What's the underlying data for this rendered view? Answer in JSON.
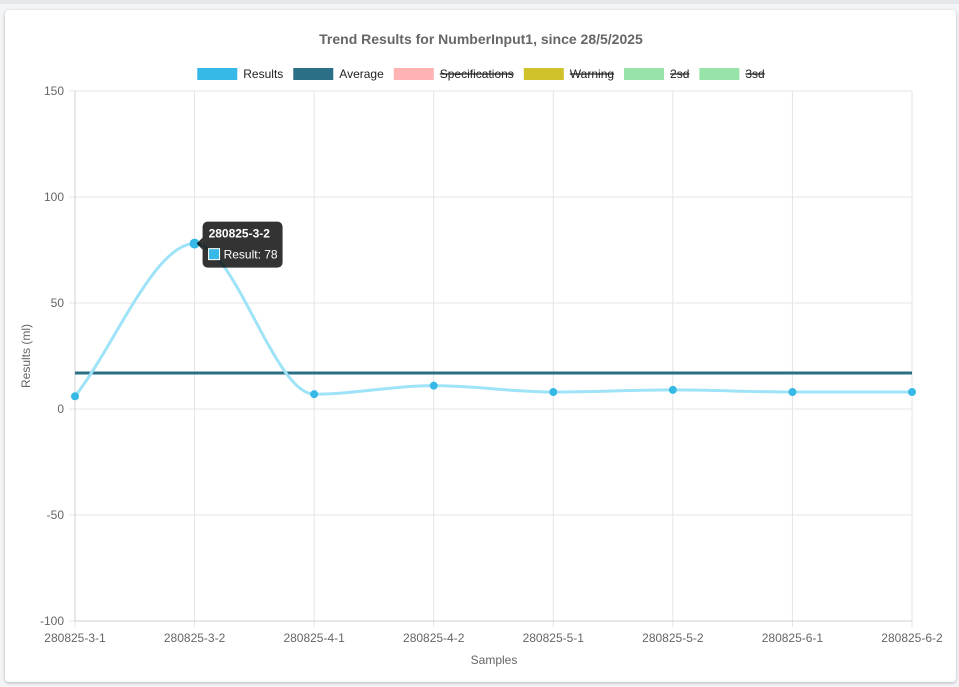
{
  "chart_data": {
    "type": "line",
    "title": "Trend Results for NumberInput1, since 28/5/2025",
    "xlabel": "Samples",
    "ylabel": "Results (ml)",
    "ylim": [
      -100,
      150
    ],
    "yticks": [
      150,
      100,
      50,
      0,
      -50,
      -100
    ],
    "categories": [
      "280825-3-1",
      "280825-3-2",
      "280825-4-1",
      "280825-4-2",
      "280825-5-1",
      "280825-5-2",
      "280825-6-1",
      "280825-6-2"
    ],
    "grid": true,
    "legend_position": "top",
    "legend": [
      {
        "label": "Results",
        "color": "#36b9e6",
        "hidden": false
      },
      {
        "label": "Average",
        "color": "#2a6f86",
        "hidden": false
      },
      {
        "label": "Specifications",
        "color": "#ffb3b3",
        "hidden": true
      },
      {
        "label": "Warning",
        "color": "#cfc22a",
        "hidden": true
      },
      {
        "label": "2sd",
        "color": "#98e4a8",
        "hidden": true
      },
      {
        "label": "3sd",
        "color": "#98e4a8",
        "hidden": true
      }
    ],
    "series": [
      {
        "name": "Results",
        "values": [
          6,
          78,
          7,
          11,
          8,
          9,
          8,
          8
        ],
        "line_color": "#9ee3f7",
        "point_color": "#36b9e6"
      },
      {
        "name": "Average",
        "values": [
          17,
          17,
          17,
          17,
          17,
          17,
          17,
          17
        ],
        "line_color": "#2a6f86"
      }
    ],
    "tooltip": {
      "title": "280825-3-2",
      "label": "Result: 78",
      "color": "#36b9e6"
    }
  }
}
